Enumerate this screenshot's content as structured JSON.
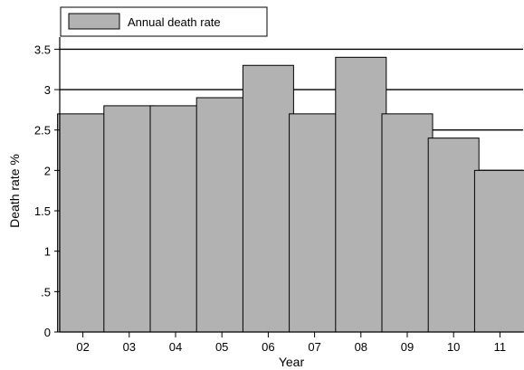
{
  "chart_data": {
    "type": "bar",
    "categories": [
      "02",
      "03",
      "04",
      "05",
      "06",
      "07",
      "08",
      "09",
      "10",
      "11"
    ],
    "series": [
      {
        "name": "Annual death rate",
        "values": [
          2.7,
          2.8,
          2.8,
          2.9,
          3.3,
          2.7,
          3.4,
          2.7,
          2.4,
          2.0
        ]
      }
    ],
    "title": "",
    "xlabel": "Year",
    "ylabel": "Death rate %",
    "ylim": [
      0,
      3.65
    ],
    "yticks": [
      0,
      0.5,
      1,
      1.5,
      2,
      2.5,
      3,
      3.5
    ],
    "ytick_labels": [
      "0",
      ".5",
      "1",
      "1.5",
      "2",
      "2.5",
      "3",
      "3.5"
    ],
    "grid": true,
    "legend_position": "top-left",
    "colors": {
      "bar_fill": "#b2b2b2",
      "bar_stroke": "#000000",
      "grid": "#000000",
      "background": "#ffffff"
    }
  }
}
